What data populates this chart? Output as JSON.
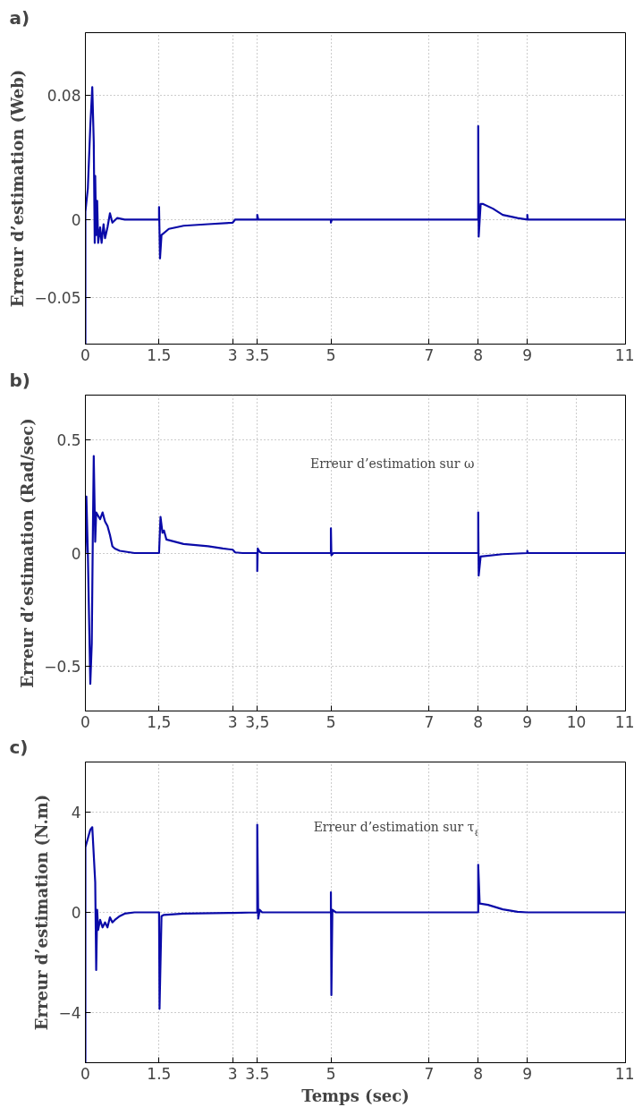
{
  "chart_data": [
    {
      "type": "line",
      "title": "a)",
      "ylabel": "Erreur d’estimation (Web)",
      "xlim": [
        0,
        11
      ],
      "ylim": [
        -0.08,
        0.12
      ],
      "xticks": [
        0,
        1.5,
        3,
        3.5,
        5,
        7,
        8,
        9,
        11
      ],
      "yticks": [
        {
          "value": -0.05,
          "label": "−0.05"
        },
        0,
        0.08
      ],
      "grid": true,
      "line_style": "solid",
      "marker": "none",
      "series": [
        {
          "color": "#0a0aa8",
          "x": [
            0,
            0,
            0.05,
            0.1,
            0.14,
            0.17,
            0.19,
            0.2,
            0.22,
            0.24,
            0.26,
            0.3,
            0.33,
            0.37,
            0.4,
            0.45,
            0.5,
            0.55,
            0.65,
            0.8,
            1.5,
            1.5,
            1.52,
            1.55,
            1.7,
            2,
            2.5,
            3,
            3.05,
            3.5,
            3.5,
            3.52,
            5,
            5,
            5.02,
            8,
            8,
            8.01,
            8.05,
            8.1,
            8.3,
            8.5,
            8.8,
            9,
            9,
            9.01,
            11
          ],
          "values": [
            -0.08,
            0.005,
            0.02,
            0.06,
            0.085,
            0.05,
            -0.015,
            0.028,
            -0.01,
            0.012,
            -0.015,
            -0.005,
            -0.015,
            -0.003,
            -0.012,
            -0.005,
            0.004,
            -0.002,
            0.001,
            0,
            0,
            0.008,
            -0.025,
            -0.01,
            -0.006,
            -0.004,
            -0.003,
            -0.002,
            0,
            0,
            0.003,
            0,
            0,
            -0.002,
            0,
            0,
            0.06,
            -0.011,
            0.01,
            0.01,
            0.007,
            0.003,
            0.001,
            0,
            0.003,
            0,
            0
          ]
        }
      ]
    },
    {
      "type": "line",
      "title": "b)",
      "ylabel": "Erreur d’estimation (Rad/sec)",
      "xlim": [
        0,
        11
      ],
      "ylim": [
        -0.7,
        0.7
      ],
      "xticks": [
        0,
        {
          "value": 1.5,
          "label": "1,5"
        },
        3,
        {
          "value": 3.5,
          "label": "3,5"
        },
        5,
        7,
        8,
        9,
        10,
        11
      ],
      "yticks": [
        {
          "value": -0.5,
          "label": "−0.5"
        },
        0,
        0.5
      ],
      "annotations": [
        "Erreur d’estimation sur ω"
      ],
      "grid": true,
      "line_style": "solid",
      "marker": "none",
      "series": [
        {
          "color": "#0a0aa8",
          "x": [
            0,
            0.02,
            0.05,
            0.1,
            0.13,
            0.15,
            0.17,
            0.2,
            0.22,
            0.3,
            0.35,
            0.4,
            0.45,
            0.5,
            0.55,
            0.6,
            0.7,
            1,
            1.5,
            1.53,
            1.57,
            1.6,
            1.65,
            2,
            2.5,
            2.8,
            3,
            3.05,
            3.2,
            3.5,
            3.5,
            3.51,
            3.55,
            3.6,
            5,
            5,
            5.01,
            5.05,
            8,
            8,
            8.01,
            8.05,
            8.5,
            9,
            9,
            9.01,
            11
          ],
          "values": [
            0,
            0.25,
            0,
            -0.58,
            -0.4,
            0.05,
            0.43,
            0.05,
            0.18,
            0.15,
            0.18,
            0.14,
            0.12,
            0.08,
            0.03,
            0.02,
            0.01,
            0,
            0,
            0.16,
            0.09,
            0.1,
            0.06,
            0.04,
            0.03,
            0.02,
            0.015,
            0.003,
            0,
            0,
            -0.08,
            0.02,
            0.005,
            0,
            0,
            0.11,
            -0.01,
            0,
            0,
            0.18,
            -0.1,
            -0.015,
            -0.005,
            0,
            0.01,
            0,
            0
          ]
        }
      ]
    },
    {
      "type": "line",
      "title": "c)",
      "xlabel": "Temps (sec)",
      "ylabel": "Erreur d’estimation (N.m)",
      "xlim": [
        0,
        11
      ],
      "ylim": [
        -6,
        6
      ],
      "xticks": [
        0,
        1.5,
        3,
        3.5,
        5,
        7,
        8,
        9,
        11
      ],
      "yticks": [
        {
          "value": -4,
          "label": "−4"
        },
        0,
        4
      ],
      "annotations": [
        "Erreur d’estimation sur τ$_{ℓ}$"
      ],
      "grid": true,
      "line_style": "solid",
      "marker": "none",
      "series": [
        {
          "color": "#0a0aa8",
          "x": [
            0,
            0,
            0.1,
            0.14,
            0.2,
            0.22,
            0.24,
            0.26,
            0.3,
            0.35,
            0.4,
            0.45,
            0.5,
            0.55,
            0.6,
            0.7,
            0.8,
            1,
            1.5,
            1.51,
            1.55,
            1.6,
            2,
            3,
            3.5,
            3.5,
            3.52,
            3.55,
            3.6,
            5,
            5,
            5.01,
            5.03,
            5.1,
            8,
            8,
            8.03,
            8.2,
            8.5,
            8.8,
            9,
            11
          ],
          "values": [
            -6,
            2.6,
            3.3,
            3.4,
            1.2,
            -2.3,
            0.1,
            -0.7,
            -0.3,
            -0.6,
            -0.4,
            -0.6,
            -0.2,
            -0.4,
            -0.3,
            -0.15,
            -0.05,
            0,
            0,
            -3.85,
            -0.15,
            -0.1,
            -0.05,
            -0.02,
            0,
            3.5,
            -0.25,
            0.1,
            0,
            0,
            0.8,
            -3.3,
            0.1,
            0,
            0,
            1.9,
            0.35,
            0.3,
            0.12,
            0.02,
            0,
            0
          ]
        }
      ]
    }
  ]
}
